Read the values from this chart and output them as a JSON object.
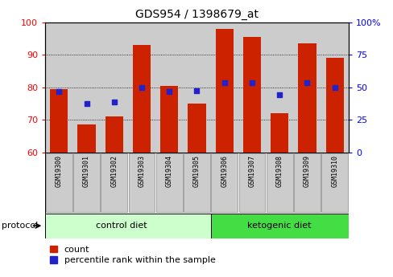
{
  "title": "GDS954 / 1398679_at",
  "samples": [
    "GSM19300",
    "GSM19301",
    "GSM19302",
    "GSM19303",
    "GSM19304",
    "GSM19305",
    "GSM19306",
    "GSM19307",
    "GSM19308",
    "GSM19309",
    "GSM19310"
  ],
  "bar_values": [
    79.5,
    68.5,
    71.0,
    93.0,
    80.5,
    75.0,
    98.0,
    95.5,
    72.0,
    93.5,
    89.0
  ],
  "dot_values_right": [
    46.5,
    37.5,
    38.5,
    50.0,
    46.5,
    47.5,
    53.5,
    53.5,
    44.5,
    53.5,
    50.0
  ],
  "ylim_left": [
    60,
    100
  ],
  "ylim_right": [
    0,
    100
  ],
  "yticks_left": [
    60,
    70,
    80,
    90,
    100
  ],
  "yticks_right": [
    0,
    25,
    50,
    75,
    100
  ],
  "ytick_labels_right": [
    "0",
    "25",
    "50",
    "75",
    "100%"
  ],
  "bar_color": "#cc2200",
  "dot_color": "#2222cc",
  "control_label": "control diet",
  "ketogenic_label": "ketogenic diet",
  "protocol_label": "protocol",
  "legend_count": "count",
  "legend_percentile": "percentile rank within the sample",
  "bg_color_control": "#ccffcc",
  "bg_color_ketogenic": "#44dd44",
  "sample_bg_color": "#cccccc",
  "n_control": 6,
  "title_fontsize": 10
}
